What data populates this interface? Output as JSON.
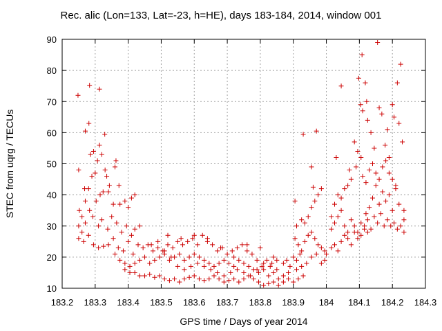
{
  "chart_data": {
    "type": "scatter",
    "title": "Rec. alic (Lon=133, Lat=-23, h=HE), days 183-184, 2014, window 001",
    "xlabel": "GPS time / Days of year 2014",
    "ylabel": "STEC from uqrg / TECUs",
    "xlim": [
      183.2,
      184.3
    ],
    "ylim": [
      10,
      90
    ],
    "xticks": [
      "183.2",
      "183.3",
      "183.4",
      "183.5",
      "183.6",
      "183.7",
      "183.8",
      "183.9",
      "184",
      "184.1",
      "184.2",
      "184.3"
    ],
    "yticks": [
      "10",
      "20",
      "30",
      "40",
      "50",
      "60",
      "70",
      "80",
      "90"
    ],
    "grid": true,
    "marker": "+",
    "color": "#cc0000",
    "points": [
      [
        183.248,
        72
      ],
      [
        183.27,
        60.5
      ],
      [
        183.283,
        75.2
      ],
      [
        183.281,
        63
      ],
      [
        183.313,
        74
      ],
      [
        183.329,
        59.5
      ],
      [
        183.25,
        48
      ],
      [
        183.268,
        42
      ],
      [
        183.286,
        53
      ],
      [
        183.295,
        54
      ],
      [
        183.3,
        47
      ],
      [
        183.307,
        51
      ],
      [
        183.313,
        56
      ],
      [
        183.32,
        53
      ],
      [
        183.33,
        48
      ],
      [
        183.335,
        46
      ],
      [
        183.343,
        43
      ],
      [
        183.36,
        49
      ],
      [
        183.363,
        51
      ],
      [
        183.372,
        43
      ],
      [
        183.252,
        35
      ],
      [
        183.26,
        33
      ],
      [
        183.27,
        38
      ],
      [
        183.28,
        42
      ],
      [
        183.29,
        46
      ],
      [
        183.303,
        38
      ],
      [
        183.315,
        40
      ],
      [
        183.324,
        41
      ],
      [
        183.34,
        41
      ],
      [
        183.355,
        37
      ],
      [
        183.375,
        37
      ],
      [
        183.39,
        38
      ],
      [
        183.4,
        36
      ],
      [
        183.41,
        39
      ],
      [
        183.42,
        40
      ],
      [
        183.25,
        30
      ],
      [
        183.26,
        28
      ],
      [
        183.27,
        31
      ],
      [
        183.283,
        35
      ],
      [
        183.293,
        33
      ],
      [
        183.31,
        30
      ],
      [
        183.32,
        32
      ],
      [
        183.338,
        29
      ],
      [
        183.35,
        33
      ],
      [
        183.365,
        31
      ],
      [
        183.38,
        28
      ],
      [
        183.395,
        30
      ],
      [
        183.41,
        27
      ],
      [
        183.42,
        29
      ],
      [
        183.435,
        30
      ],
      [
        183.25,
        26
      ],
      [
        183.265,
        25
      ],
      [
        183.28,
        27
      ],
      [
        183.295,
        24
      ],
      [
        183.31,
        23
      ],
      [
        183.325,
        23.5
      ],
      [
        183.34,
        24
      ],
      [
        183.355,
        26
      ],
      [
        183.37,
        23
      ],
      [
        183.385,
        22
      ],
      [
        183.4,
        25
      ],
      [
        183.415,
        21
      ],
      [
        183.43,
        24
      ],
      [
        183.445,
        23
      ],
      [
        183.46,
        24
      ],
      [
        183.475,
        22
      ],
      [
        183.49,
        23
      ],
      [
        183.505,
        22
      ],
      [
        183.52,
        24
      ],
      [
        183.535,
        23
      ],
      [
        183.55,
        25
      ],
      [
        183.565,
        24
      ],
      [
        183.58,
        25
      ],
      [
        183.595,
        26
      ],
      [
        183.61,
        24
      ],
      [
        183.625,
        27
      ],
      [
        183.64,
        25
      ],
      [
        183.655,
        24
      ],
      [
        183.67,
        22
      ],
      [
        183.685,
        23
      ],
      [
        183.7,
        21
      ],
      [
        183.715,
        22
      ],
      [
        183.73,
        23
      ],
      [
        183.745,
        24
      ],
      [
        183.76,
        22
      ],
      [
        183.775,
        21
      ],
      [
        183.79,
        19
      ],
      [
        183.805,
        17
      ],
      [
        183.82,
        19
      ],
      [
        183.835,
        18
      ],
      [
        183.85,
        16
      ],
      [
        183.36,
        21
      ],
      [
        183.375,
        19
      ],
      [
        183.39,
        18
      ],
      [
        183.405,
        17
      ],
      [
        183.42,
        18
      ],
      [
        183.435,
        19
      ],
      [
        183.45,
        20
      ],
      [
        183.465,
        18
      ],
      [
        183.48,
        19
      ],
      [
        183.495,
        20
      ],
      [
        183.51,
        21
      ],
      [
        183.525,
        19
      ],
      [
        183.54,
        20
      ],
      [
        183.555,
        21
      ],
      [
        183.57,
        19
      ],
      [
        183.585,
        20
      ],
      [
        183.6,
        21
      ],
      [
        183.615,
        20
      ],
      [
        183.63,
        19
      ],
      [
        183.645,
        18
      ],
      [
        183.66,
        17
      ],
      [
        183.675,
        18
      ],
      [
        183.69,
        19
      ],
      [
        183.705,
        18
      ],
      [
        183.72,
        17
      ],
      [
        183.735,
        19
      ],
      [
        183.75,
        18
      ],
      [
        183.765,
        17
      ],
      [
        183.78,
        16
      ],
      [
        183.795,
        15
      ],
      [
        183.81,
        16
      ],
      [
        183.825,
        14
      ],
      [
        183.84,
        15
      ],
      [
        183.855,
        13
      ],
      [
        183.87,
        14
      ],
      [
        183.885,
        15
      ],
      [
        183.39,
        16
      ],
      [
        183.405,
        15
      ],
      [
        183.42,
        15
      ],
      [
        183.435,
        14
      ],
      [
        183.45,
        14
      ],
      [
        183.465,
        14.5
      ],
      [
        183.48,
        13.5
      ],
      [
        183.495,
        14
      ],
      [
        183.51,
        13
      ],
      [
        183.525,
        12.5
      ],
      [
        183.54,
        13
      ],
      [
        183.555,
        12
      ],
      [
        183.57,
        13
      ],
      [
        183.585,
        13.5
      ],
      [
        183.6,
        14
      ],
      [
        183.615,
        13
      ],
      [
        183.63,
        12.5
      ],
      [
        183.645,
        13
      ],
      [
        183.66,
        14
      ],
      [
        183.675,
        13
      ],
      [
        183.69,
        12
      ],
      [
        183.705,
        12.5
      ],
      [
        183.72,
        13
      ],
      [
        183.735,
        12
      ],
      [
        183.75,
        13
      ],
      [
        183.765,
        14
      ],
      [
        183.78,
        13
      ],
      [
        183.795,
        12
      ],
      [
        183.81,
        11
      ],
      [
        183.825,
        11.5
      ],
      [
        183.84,
        12
      ],
      [
        183.855,
        11
      ],
      [
        183.87,
        12
      ],
      [
        183.885,
        13
      ],
      [
        183.9,
        12
      ],
      [
        183.915,
        13
      ],
      [
        183.93,
        14
      ],
      [
        183.47,
        24
      ],
      [
        183.49,
        25
      ],
      [
        183.51,
        22
      ],
      [
        183.53,
        20
      ],
      [
        183.55,
        17
      ],
      [
        183.57,
        16
      ],
      [
        183.59,
        17
      ],
      [
        183.61,
        18
      ],
      [
        183.63,
        17
      ],
      [
        183.65,
        16
      ],
      [
        183.67,
        15
      ],
      [
        183.69,
        14
      ],
      [
        183.71,
        15
      ],
      [
        183.73,
        16
      ],
      [
        183.75,
        15
      ],
      [
        183.77,
        14
      ],
      [
        183.79,
        16
      ],
      [
        183.81,
        18
      ],
      [
        183.83,
        17
      ],
      [
        183.85,
        19
      ],
      [
        183.87,
        18
      ],
      [
        183.89,
        17
      ],
      [
        183.91,
        16
      ],
      [
        183.52,
        27
      ],
      [
        183.56,
        26
      ],
      [
        183.6,
        27
      ],
      [
        183.64,
        26
      ],
      [
        183.68,
        23
      ],
      [
        183.72,
        20
      ],
      [
        183.76,
        24
      ],
      [
        183.8,
        23
      ],
      [
        183.84,
        20
      ],
      [
        183.88,
        19
      ],
      [
        183.9,
        20
      ],
      [
        183.92,
        21
      ],
      [
        183.905,
        26
      ],
      [
        183.915,
        24
      ],
      [
        183.925,
        22
      ],
      [
        183.935,
        25
      ],
      [
        183.945,
        27
      ],
      [
        183.955,
        28
      ],
      [
        183.965,
        26
      ],
      [
        183.975,
        24
      ],
      [
        183.985,
        23
      ],
      [
        183.995,
        22
      ],
      [
        184.0,
        21
      ],
      [
        183.91,
        30
      ],
      [
        183.925,
        32
      ],
      [
        183.935,
        31
      ],
      [
        183.945,
        33
      ],
      [
        183.955,
        36
      ],
      [
        183.965,
        38
      ],
      [
        183.975,
        40
      ],
      [
        183.985,
        42
      ],
      [
        183.905,
        38
      ],
      [
        183.93,
        59.5
      ],
      [
        183.955,
        49
      ],
      [
        183.97,
        60.5
      ],
      [
        183.96,
        42.5
      ],
      [
        183.91,
        19
      ],
      [
        183.925,
        17
      ],
      [
        183.94,
        18
      ],
      [
        183.955,
        20
      ],
      [
        183.97,
        21
      ],
      [
        183.985,
        18
      ],
      [
        183.995,
        19
      ],
      [
        184.015,
        33
      ],
      [
        184.025,
        37
      ],
      [
        184.035,
        40
      ],
      [
        184.045,
        39
      ],
      [
        184.055,
        42
      ],
      [
        184.065,
        43
      ],
      [
        184.075,
        45
      ],
      [
        184.085,
        57
      ],
      [
        184.09,
        49
      ],
      [
        184.095,
        54
      ],
      [
        184.105,
        52
      ],
      [
        184.11,
        46
      ],
      [
        184.12,
        44
      ],
      [
        184.13,
        48
      ],
      [
        184.14,
        50
      ],
      [
        184.15,
        47
      ],
      [
        184.16,
        45
      ],
      [
        184.17,
        49
      ],
      [
        184.18,
        51
      ],
      [
        184.19,
        47
      ],
      [
        184.2,
        45
      ],
      [
        184.21,
        43
      ],
      [
        184.015,
        29
      ],
      [
        184.025,
        31
      ],
      [
        184.035,
        33
      ],
      [
        184.045,
        35
      ],
      [
        184.055,
        30
      ],
      [
        184.065,
        28
      ],
      [
        184.075,
        32
      ],
      [
        184.085,
        30
      ],
      [
        184.095,
        28
      ],
      [
        184.105,
        31
      ],
      [
        184.115,
        30
      ],
      [
        184.125,
        32
      ],
      [
        184.135,
        29
      ],
      [
        184.145,
        33
      ],
      [
        184.155,
        31
      ],
      [
        184.165,
        34
      ],
      [
        184.175,
        30
      ],
      [
        184.185,
        32
      ],
      [
        184.195,
        30
      ],
      [
        184.205,
        31
      ],
      [
        184.215,
        29
      ],
      [
        184.225,
        30
      ],
      [
        184.235,
        32
      ],
      [
        184.015,
        23
      ],
      [
        184.025,
        24
      ],
      [
        184.035,
        22
      ],
      [
        184.045,
        25
      ],
      [
        184.055,
        27
      ],
      [
        184.065,
        26
      ],
      [
        184.075,
        24
      ],
      [
        184.085,
        28
      ],
      [
        184.095,
        26
      ],
      [
        184.105,
        27
      ],
      [
        184.115,
        29
      ],
      [
        184.125,
        28
      ],
      [
        184.03,
        52
      ],
      [
        184.045,
        75
      ],
      [
        184.07,
        48
      ],
      [
        184.098,
        77.5
      ],
      [
        184.108,
        85
      ],
      [
        184.118,
        76
      ],
      [
        184.122,
        70
      ],
      [
        184.104,
        69
      ],
      [
        184.11,
        67
      ],
      [
        184.125,
        64
      ],
      [
        184.135,
        60
      ],
      [
        184.145,
        55
      ],
      [
        184.155,
        89
      ],
      [
        184.16,
        68
      ],
      [
        184.168,
        66
      ],
      [
        184.178,
        56
      ],
      [
        184.185,
        61
      ],
      [
        184.2,
        69
      ],
      [
        184.205,
        65
      ],
      [
        184.215,
        76
      ],
      [
        184.225,
        82
      ],
      [
        184.22,
        63
      ],
      [
        184.23,
        57
      ],
      [
        184.19,
        52
      ],
      [
        184.17,
        41
      ],
      [
        184.18,
        38
      ],
      [
        184.21,
        42
      ],
      [
        184.22,
        37
      ],
      [
        184.235,
        35
      ],
      [
        184.235,
        28
      ],
      [
        184.2,
        35
      ],
      [
        184.19,
        40
      ],
      [
        184.16,
        37
      ],
      [
        184.15,
        43
      ],
      [
        184.14,
        39
      ],
      [
        184.13,
        36
      ],
      [
        184.12,
        34
      ]
    ]
  }
}
